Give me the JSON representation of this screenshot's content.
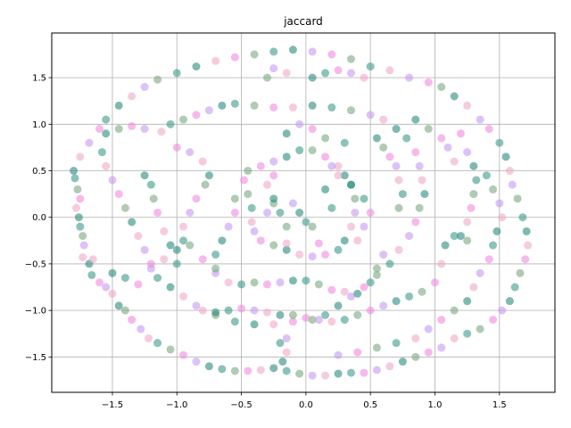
{
  "chart_data": {
    "type": "scatter",
    "title": "jaccard",
    "xlabel": "",
    "ylabel": "",
    "xlim": [
      -1.97,
      1.93
    ],
    "ylim": [
      -1.88,
      1.98
    ],
    "xticks": [
      -1.5,
      -1.0,
      -0.5,
      0.0,
      0.5,
      1.0,
      1.5
    ],
    "yticks": [
      -1.5,
      -1.0,
      -0.5,
      0.0,
      0.5,
      1.0,
      1.5
    ],
    "xtick_labels": [
      "−1.5",
      "−1.0",
      "−0.5",
      "0.0",
      "0.5",
      "1.0",
      "1.5"
    ],
    "ytick_labels": [
      "−1.5",
      "−1.0",
      "−0.5",
      "0.0",
      "0.5",
      "1.0",
      "1.5"
    ],
    "grid": true,
    "marker_alpha": 0.6,
    "colors": [
      "#2a8a7e",
      "#3d9a8a",
      "#7aa97e",
      "#f08ae0",
      "#c49af0",
      "#f0a8c8"
    ],
    "series": [
      {
        "points": [
          [
            -1.8,
            0.5
          ],
          [
            -1.79,
            0.42
          ],
          [
            -1.77,
            0.3
          ],
          [
            -1.75,
            0.2
          ],
          [
            -1.78,
            0.1
          ],
          [
            -1.76,
            0.0
          ],
          [
            -1.75,
            -0.1
          ],
          [
            -1.73,
            -0.2
          ],
          [
            -1.72,
            -0.3
          ],
          [
            -1.73,
            -0.43
          ],
          [
            -1.68,
            -0.5
          ],
          [
            -1.66,
            -0.62
          ],
          [
            -1.6,
            -0.7
          ],
          [
            -1.55,
            -0.75
          ],
          [
            -1.5,
            -0.82
          ],
          [
            -1.45,
            -0.95
          ],
          [
            -1.4,
            -1.0
          ],
          [
            -1.35,
            -1.1
          ],
          [
            -1.28,
            -1.2
          ],
          [
            -1.22,
            -1.3
          ],
          [
            -1.15,
            -1.35
          ],
          [
            -1.05,
            -1.42
          ],
          [
            -0.95,
            -1.48
          ],
          [
            -0.85,
            -1.55
          ],
          [
            -0.75,
            -1.6
          ],
          [
            -0.65,
            -1.63
          ],
          [
            -0.55,
            -1.65
          ],
          [
            -0.45,
            -1.65
          ],
          [
            -0.35,
            -1.64
          ],
          [
            -0.25,
            -1.62
          ],
          [
            -0.15,
            -1.65
          ],
          [
            -0.05,
            -1.68
          ],
          [
            0.05,
            -1.7
          ],
          [
            0.15,
            -1.7
          ],
          [
            0.25,
            -1.68
          ],
          [
            0.35,
            -1.67
          ],
          [
            0.45,
            -1.67
          ],
          [
            0.55,
            -1.64
          ],
          [
            0.65,
            -1.6
          ],
          [
            0.75,
            -1.55
          ],
          [
            0.85,
            -1.5
          ],
          [
            0.95,
            -1.45
          ],
          [
            1.05,
            -1.4
          ],
          [
            1.15,
            -1.3
          ],
          [
            1.25,
            -1.25
          ],
          [
            1.35,
            -1.2
          ],
          [
            1.45,
            -1.1
          ],
          [
            1.52,
            -1.0
          ],
          [
            1.58,
            -0.9
          ],
          [
            1.62,
            -0.75
          ],
          [
            1.66,
            -0.6
          ],
          [
            1.7,
            -0.45
          ],
          [
            1.72,
            -0.3
          ],
          [
            1.71,
            -0.15
          ],
          [
            1.68,
            0.0
          ],
          [
            1.64,
            0.2
          ],
          [
            1.6,
            0.35
          ],
          [
            1.58,
            0.5
          ],
          [
            1.55,
            0.65
          ],
          [
            1.5,
            0.8
          ],
          [
            1.42,
            0.95
          ],
          [
            1.35,
            1.05
          ],
          [
            1.25,
            1.2
          ],
          [
            1.15,
            1.3
          ],
          [
            1.05,
            1.4
          ],
          [
            0.95,
            1.45
          ],
          [
            0.8,
            1.5
          ],
          [
            0.65,
            1.58
          ],
          [
            0.5,
            1.62
          ],
          [
            0.35,
            1.7
          ],
          [
            0.2,
            1.75
          ],
          [
            0.05,
            1.78
          ],
          [
            -0.1,
            1.8
          ],
          [
            -0.25,
            1.78
          ],
          [
            -0.4,
            1.75
          ],
          [
            -0.55,
            1.72
          ],
          [
            -0.7,
            1.68
          ],
          [
            -0.85,
            1.62
          ],
          [
            -1.0,
            1.55
          ],
          [
            -1.15,
            1.48
          ],
          [
            -1.25,
            1.4
          ],
          [
            -1.35,
            1.3
          ],
          [
            -1.45,
            1.2
          ],
          [
            -1.55,
            1.05
          ],
          [
            -1.6,
            0.95
          ],
          [
            -1.68,
            0.8
          ],
          [
            -1.75,
            0.65
          ]
        ]
      },
      {
        "points": [
          [
            -1.55,
            0.9
          ],
          [
            -1.45,
            0.95
          ],
          [
            -1.35,
            0.98
          ],
          [
            -1.25,
            0.95
          ],
          [
            -1.12,
            0.92
          ],
          [
            -1.05,
            1.0
          ],
          [
            -0.95,
            1.05
          ],
          [
            -0.85,
            1.1
          ],
          [
            -0.75,
            1.15
          ],
          [
            -0.65,
            1.2
          ],
          [
            -0.55,
            1.22
          ],
          [
            -0.4,
            1.2
          ],
          [
            -0.25,
            1.18
          ],
          [
            -0.1,
            1.18
          ],
          [
            0.05,
            1.2
          ],
          [
            0.2,
            1.18
          ],
          [
            0.35,
            1.15
          ],
          [
            0.5,
            1.1
          ],
          [
            0.6,
            1.05
          ],
          [
            0.7,
            0.95
          ],
          [
            0.78,
            0.85
          ],
          [
            0.85,
            0.7
          ],
          [
            0.88,
            0.55
          ],
          [
            0.9,
            0.4
          ],
          [
            0.92,
            0.25
          ],
          [
            0.88,
            0.1
          ],
          [
            0.85,
            -0.05
          ],
          [
            0.8,
            -0.2
          ],
          [
            0.72,
            -0.35
          ],
          [
            0.65,
            -0.5
          ],
          [
            0.55,
            -0.62
          ],
          [
            0.45,
            -0.75
          ],
          [
            0.35,
            -0.85
          ],
          [
            0.25,
            -0.95
          ],
          [
            0.15,
            -1.05
          ],
          [
            0.05,
            -1.1
          ],
          [
            -0.1,
            -1.12
          ],
          [
            -0.25,
            -1.15
          ],
          [
            -0.4,
            -1.15
          ],
          [
            -0.55,
            -1.12
          ],
          [
            -0.7,
            -1.05
          ],
          [
            -0.85,
            -0.95
          ],
          [
            -0.95,
            -0.85
          ],
          [
            -1.05,
            -0.75
          ],
          [
            -1.15,
            -0.65
          ],
          [
            -1.2,
            -0.5
          ],
          [
            -1.25,
            -0.35
          ],
          [
            -1.3,
            -0.2
          ],
          [
            -1.35,
            -0.05
          ],
          [
            -1.4,
            0.1
          ],
          [
            -1.45,
            0.25
          ],
          [
            -1.5,
            0.4
          ],
          [
            -1.55,
            0.55
          ],
          [
            -1.58,
            0.7
          ]
        ]
      },
      {
        "points": [
          [
            -0.45,
            0.5
          ],
          [
            -0.35,
            0.55
          ],
          [
            -0.25,
            0.6
          ],
          [
            -0.15,
            0.65
          ],
          [
            -0.05,
            0.72
          ],
          [
            0.05,
            0.72
          ],
          [
            0.15,
            0.65
          ],
          [
            0.25,
            0.55
          ],
          [
            0.3,
            0.45
          ],
          [
            0.35,
            0.35
          ],
          [
            0.38,
            0.2
          ],
          [
            0.38,
            0.05
          ],
          [
            0.35,
            -0.1
          ],
          [
            0.3,
            -0.25
          ],
          [
            0.25,
            -0.35
          ],
          [
            0.15,
            -0.4
          ],
          [
            0.05,
            -0.42
          ],
          [
            -0.05,
            -0.4
          ],
          [
            -0.15,
            -0.35
          ],
          [
            -0.25,
            -0.3
          ],
          [
            -0.35,
            -0.25
          ],
          [
            -0.4,
            -0.15
          ],
          [
            -0.42,
            -0.05
          ],
          [
            -0.42,
            0.1
          ],
          [
            -0.45,
            0.25
          ],
          [
            -0.48,
            0.4
          ],
          [
            -0.1,
            0.15
          ],
          [
            -0.05,
            0.05
          ],
          [
            0.0,
            -0.05
          ],
          [
            0.05,
            -0.1
          ],
          [
            0.1,
            -0.28
          ],
          [
            -0.15,
            -0.28
          ],
          [
            0.15,
            0.3
          ],
          [
            0.2,
            0.1
          ],
          [
            -0.25,
            0.15
          ],
          [
            -0.3,
            0.05
          ]
        ]
      },
      {
        "points": [
          [
            -1.65,
            -0.45
          ],
          [
            -1.5,
            -0.6
          ],
          [
            -1.4,
            -0.65
          ],
          [
            -1.3,
            -0.72
          ],
          [
            -1.2,
            -0.55
          ],
          [
            -1.1,
            -0.45
          ],
          [
            -1.0,
            -0.35
          ],
          [
            -0.9,
            -0.3
          ],
          [
            -0.8,
            -0.45
          ],
          [
            -0.7,
            -0.6
          ],
          [
            -0.6,
            -0.7
          ],
          [
            -0.5,
            -0.72
          ],
          [
            -0.4,
            -0.7
          ],
          [
            -0.3,
            -0.72
          ],
          [
            -0.2,
            -0.7
          ],
          [
            -0.1,
            -0.68
          ],
          [
            0.0,
            -0.68
          ],
          [
            0.1,
            -0.72
          ],
          [
            0.2,
            -0.78
          ],
          [
            0.3,
            -0.8
          ],
          [
            0.4,
            -0.82
          ],
          [
            0.5,
            -0.7
          ],
          [
            0.55,
            -0.55
          ],
          [
            0.6,
            -0.4
          ],
          [
            -0.8,
            -1.0
          ],
          [
            -0.7,
            -1.02
          ],
          [
            -0.6,
            -1.0
          ],
          [
            -0.5,
            -0.98
          ],
          [
            -0.4,
            -1.0
          ],
          [
            -0.3,
            -1.02
          ],
          [
            -0.2,
            -1.05
          ],
          [
            -0.1,
            -1.05
          ],
          [
            0.0,
            -1.08
          ],
          [
            0.1,
            -1.1
          ],
          [
            0.2,
            -1.12
          ],
          [
            0.3,
            -1.1
          ],
          [
            0.4,
            -1.05
          ],
          [
            0.5,
            -1.0
          ],
          [
            0.6,
            -0.95
          ],
          [
            0.7,
            -0.9
          ],
          [
            0.8,
            -0.85
          ],
          [
            0.9,
            -0.8
          ],
          [
            1.0,
            -0.7
          ],
          [
            1.05,
            -0.5
          ],
          [
            1.08,
            -0.3
          ],
          [
            1.15,
            -0.2
          ],
          [
            1.25,
            -0.25
          ],
          [
            -0.15,
            -1.3
          ],
          [
            -0.15,
            -1.45
          ],
          [
            -0.18,
            -1.55
          ],
          [
            -0.2,
            -1.35
          ]
        ]
      },
      {
        "points": [
          [
            -1.0,
            0.75
          ],
          [
            -0.9,
            0.7
          ],
          [
            -0.8,
            0.6
          ],
          [
            -0.75,
            0.45
          ],
          [
            -0.78,
            0.35
          ],
          [
            -0.85,
            0.2
          ],
          [
            -0.9,
            0.05
          ],
          [
            -0.95,
            -0.1
          ],
          [
            -0.95,
            -0.25
          ],
          [
            -0.55,
            0.2
          ],
          [
            -0.55,
            0.05
          ],
          [
            -0.6,
            -0.1
          ],
          [
            -0.65,
            -0.25
          ],
          [
            -0.7,
            -0.4
          ],
          [
            -0.7,
            -0.55
          ],
          [
            -0.25,
            0.45
          ],
          [
            -0.3,
            0.35
          ],
          [
            -0.25,
            0.2
          ],
          [
            -0.2,
            0.05
          ],
          [
            -0.15,
            -0.1
          ],
          [
            0.2,
            0.55
          ],
          [
            0.25,
            0.45
          ],
          [
            0.35,
            0.35
          ],
          [
            0.45,
            0.2
          ],
          [
            0.5,
            0.05
          ],
          [
            0.45,
            -0.1
          ],
          [
            0.4,
            -0.25
          ],
          [
            0.55,
            0.85
          ],
          [
            0.6,
            0.75
          ],
          [
            0.65,
            0.65
          ],
          [
            0.7,
            0.55
          ],
          [
            0.72,
            0.4
          ],
          [
            0.75,
            0.25
          ],
          [
            0.72,
            0.1
          ],
          [
            1.2,
            0.9
          ],
          [
            1.25,
            0.7
          ],
          [
            1.3,
            0.55
          ],
          [
            1.32,
            0.4
          ],
          [
            1.3,
            0.25
          ],
          [
            1.28,
            0.1
          ],
          [
            1.25,
            -0.05
          ],
          [
            1.2,
            -0.2
          ],
          [
            1.4,
            0.45
          ],
          [
            1.45,
            0.3
          ],
          [
            1.5,
            0.15
          ],
          [
            1.52,
            0.0
          ],
          [
            1.48,
            -0.15
          ],
          [
            1.45,
            -0.3
          ],
          [
            1.42,
            -0.45
          ],
          [
            1.35,
            -0.6
          ],
          [
            1.3,
            -0.75
          ],
          [
            1.25,
            -0.9
          ],
          [
            1.15,
            -1.0
          ],
          [
            1.05,
            -1.1
          ],
          [
            0.95,
            -1.2
          ],
          [
            0.85,
            -1.3
          ],
          [
            0.7,
            -1.35
          ],
          [
            0.55,
            -1.4
          ],
          [
            0.4,
            -1.45
          ],
          [
            0.25,
            -1.48
          ],
          [
            -1.25,
            0.45
          ],
          [
            -1.2,
            0.35
          ],
          [
            -1.18,
            0.2
          ],
          [
            -1.15,
            0.05
          ],
          [
            -1.1,
            -0.15
          ],
          [
            -1.05,
            -0.3
          ],
          [
            -1.0,
            -0.5
          ],
          [
            -0.3,
            1.5
          ],
          [
            -0.25,
            1.6
          ],
          [
            -0.15,
            1.55
          ],
          [
            0.05,
            1.5
          ],
          [
            0.15,
            1.55
          ],
          [
            0.25,
            1.58
          ],
          [
            0.35,
            1.55
          ],
          [
            0.45,
            1.5
          ],
          [
            0.85,
            1.05
          ],
          [
            0.95,
            0.95
          ],
          [
            1.05,
            0.85
          ],
          [
            1.1,
            0.75
          ],
          [
            1.15,
            0.6
          ],
          [
            0.3,
            0.8
          ],
          [
            0.15,
            0.85
          ],
          [
            0.05,
            0.95
          ],
          [
            -0.05,
            1.0
          ],
          [
            -0.15,
            0.9
          ]
        ]
      }
    ]
  }
}
